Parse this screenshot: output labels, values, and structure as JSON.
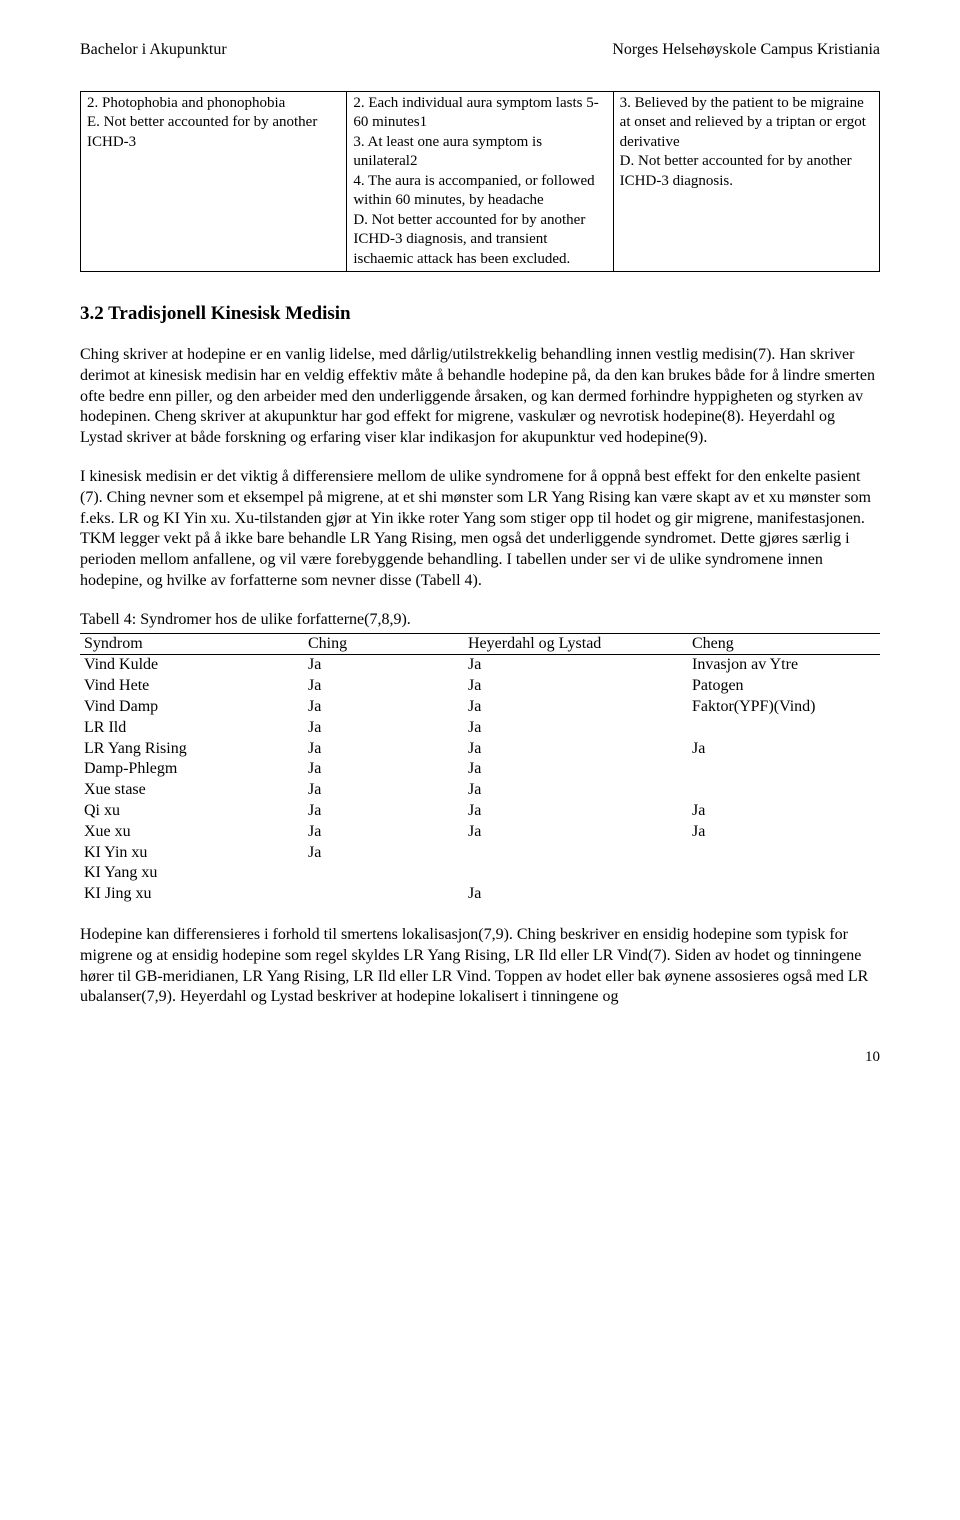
{
  "header": {
    "left": "Bachelor i Akupunktur",
    "right": "Norges Helsehøyskole Campus Kristiania"
  },
  "criteria_table": {
    "col1": "2. Photophobia and phonophobia\nE. Not better accounted for by another ICHD-3",
    "col2": "2. Each individual aura symptom lasts 5-60 minutes1\n3. At least one aura symptom is unilateral2\n4. The aura is accompanied, or followed within 60 minutes, by headache\nD. Not better accounted for by another ICHD-3 diagnosis, and transient ischaemic attack has been excluded.",
    "col3": "3. Believed by the patient to be migraine at onset and relieved by a triptan or ergot derivative\nD. Not better accounted for by another ICHD-3 diagnosis."
  },
  "section_heading": "3.2 Tradisjonell Kinesisk Medisin",
  "para1": "Ching skriver at hodepine er en vanlig lidelse, med dårlig/utilstrekkelig behandling innen vestlig medisin(7). Han skriver derimot at kinesisk medisin har en veldig effektiv måte å behandle hodepine på, da den kan brukes både for å lindre smerten ofte bedre enn piller, og den arbeider med den underliggende årsaken, og kan dermed forhindre hyppigheten og styrken av hodepinen. Cheng skriver at akupunktur har god effekt for migrene, vaskulær og nevrotisk hodepine(8). Heyerdahl og Lystad skriver at både forskning og erfaring viser klar indikasjon for akupunktur ved hodepine(9).",
  "para2": "I kinesisk medisin er det viktig å differensiere mellom de ulike syndromene for å oppnå best effekt for den enkelte pasient (7). Ching nevner som et eksempel på migrene, at et shi mønster som LR Yang Rising kan være skapt av et xu mønster som f.eks. LR og KI Yin xu. Xu-tilstanden gjør at Yin ikke roter Yang som stiger opp til hodet og gir migrene, manifestasjonen. TKM legger vekt på å ikke bare behandle LR Yang Rising, men også det underliggende syndromet. Dette gjøres særlig i perioden mellom anfallene, og vil være forebyggende behandling. I tabellen under ser vi de ulike syndromene innen hodepine, og hvilke av forfatterne som nevner disse (Tabell 4).",
  "table_caption": "Tabell 4: Syndromer hos de ulike forfatterne(7,8,9).",
  "syndrome_table": {
    "headers": [
      "Syndrom",
      "Ching",
      "Heyerdahl og Lystad",
      "Cheng"
    ],
    "rows": [
      [
        "Vind Kulde",
        "Ja",
        "Ja",
        "Invasjon av Ytre"
      ],
      [
        "Vind Hete",
        "Ja",
        "Ja",
        "Patogen"
      ],
      [
        "Vind Damp",
        "Ja",
        "Ja",
        "Faktor(YPF)(Vind)"
      ],
      [
        "LR Ild",
        "Ja",
        "Ja",
        ""
      ],
      [
        "LR Yang Rising",
        "Ja",
        "Ja",
        "Ja"
      ],
      [
        "Damp-Phlegm",
        "Ja",
        "Ja",
        ""
      ],
      [
        "Xue stase",
        "Ja",
        "Ja",
        ""
      ],
      [
        "Qi xu",
        "Ja",
        "Ja",
        "Ja"
      ],
      [
        "Xue xu",
        "Ja",
        "Ja",
        "Ja"
      ],
      [
        "KI Yin xu",
        "Ja",
        "",
        ""
      ],
      [
        "KI Yang xu",
        "",
        "",
        ""
      ],
      [
        "KI Jing xu",
        "",
        "Ja",
        ""
      ]
    ]
  },
  "para3": "Hodepine kan differensieres i forhold til smertens lokalisasjon(7,9). Ching beskriver en ensidig hodepine som typisk for migrene og at ensidig hodepine som regel skyldes LR Yang Rising, LR Ild eller LR Vind(7). Siden av hodet og tinningene hører til GB-meridianen, LR Yang Rising, LR Ild eller LR Vind. Toppen av hodet eller bak øynene assosieres også med LR ubalanser(7,9). Heyerdahl og Lystad beskriver at hodepine lokalisert i tinningene og",
  "page_number": "10"
}
